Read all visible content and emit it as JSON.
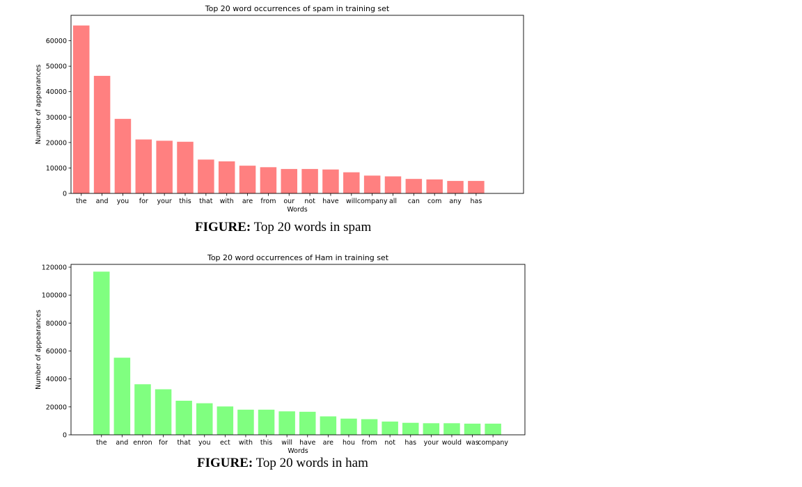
{
  "chart_data": [
    {
      "type": "bar",
      "title": "Top 20 word occurrences of spam in training set",
      "xlabel": "Words",
      "ylabel": "Number of appearances",
      "ylim": [
        0,
        70000
      ],
      "yticks": [
        0,
        10000,
        20000,
        30000,
        40000,
        50000,
        60000
      ],
      "color": "#ff8080",
      "grid": false,
      "categories": [
        "the",
        "and",
        "you",
        "for",
        "your",
        "this",
        "that",
        "with",
        "are",
        "from",
        "our",
        "not",
        "have",
        "will",
        "company",
        "all",
        "can",
        "com",
        "any",
        "has"
      ],
      "values": [
        66000,
        46200,
        29300,
        21200,
        20700,
        20300,
        13300,
        12600,
        10900,
        10300,
        9600,
        9600,
        9400,
        8300,
        7000,
        6700,
        5700,
        5500,
        4900,
        4900
      ]
    },
    {
      "type": "bar",
      "title": "Top 20 word occurrences of Ham in training set",
      "xlabel": "Words",
      "ylabel": "Number of appearances",
      "ylim": [
        0,
        122000
      ],
      "yticks": [
        0,
        20000,
        40000,
        60000,
        80000,
        100000,
        120000
      ],
      "color": "#80ff80",
      "grid": false,
      "categories": [
        "the",
        "and",
        "enron",
        "for",
        "that",
        "you",
        "ect",
        "with",
        "this",
        "will",
        "have",
        "are",
        "hou",
        "from",
        "not",
        "has",
        "your",
        "would",
        "was",
        "company"
      ],
      "values": [
        116800,
        55200,
        36200,
        32600,
        24400,
        22600,
        20300,
        18000,
        18000,
        16800,
        16500,
        13200,
        11600,
        11200,
        9500,
        8600,
        8300,
        8300,
        8000,
        8000
      ]
    }
  ],
  "captions": [
    {
      "label": "FIGURE:",
      "text": " Top 20 words in spam"
    },
    {
      "label": "FIGURE:",
      "text": " Top 20 words in ham"
    }
  ]
}
